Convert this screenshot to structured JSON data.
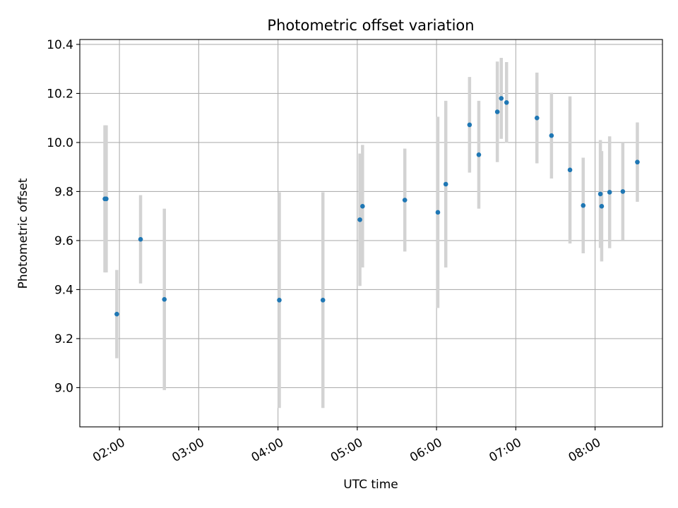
{
  "chart_data": {
    "type": "scatter",
    "title": "Photometric offset variation",
    "xlabel": "UTC time",
    "ylabel": "Photometric offset",
    "grid": true,
    "xlim": [
      "01:30",
      "08:51"
    ],
    "ylim": [
      8.84,
      10.42
    ],
    "xticks": [
      "02:00",
      "03:00",
      "04:00",
      "05:00",
      "06:00",
      "07:00",
      "08:00"
    ],
    "yticks": [
      9.0,
      9.2,
      9.4,
      9.6,
      9.8,
      10.0,
      10.2,
      10.4
    ],
    "series_color": "#1f77b4",
    "errorbar_color": "#d3d3d3",
    "points": [
      {
        "x": "01:49",
        "y": 9.77,
        "yerr": 0.3
      },
      {
        "x": "01:50",
        "y": 9.77,
        "yerr": 0.3
      },
      {
        "x": "01:58",
        "y": 9.3,
        "yerr": 0.18
      },
      {
        "x": "02:16",
        "y": 9.605,
        "yerr": 0.18
      },
      {
        "x": "02:34",
        "y": 9.36,
        "yerr": 0.37
      },
      {
        "x": "04:01",
        "y": 9.357,
        "yerr": 0.44
      },
      {
        "x": "04:34",
        "y": 9.357,
        "yerr": 0.44
      },
      {
        "x": "05:02",
        "y": 9.685,
        "yerr": 0.27
      },
      {
        "x": "05:04",
        "y": 9.74,
        "yerr": 0.25
      },
      {
        "x": "05:36",
        "y": 9.765,
        "yerr": 0.21
      },
      {
        "x": "06:01",
        "y": 9.715,
        "yerr": 0.39
      },
      {
        "x": "06:07",
        "y": 9.83,
        "yerr": 0.34
      },
      {
        "x": "06:25",
        "y": 10.072,
        "yerr": 0.195
      },
      {
        "x": "06:32",
        "y": 9.95,
        "yerr": 0.22
      },
      {
        "x": "06:46",
        "y": 10.125,
        "yerr": 0.205
      },
      {
        "x": "06:49",
        "y": 10.18,
        "yerr": 0.165
      },
      {
        "x": "06:53",
        "y": 10.163,
        "yerr": 0.165
      },
      {
        "x": "07:16",
        "y": 10.1,
        "yerr": 0.185
      },
      {
        "x": "07:27",
        "y": 10.028,
        "yerr": 0.175
      },
      {
        "x": "07:41",
        "y": 9.888,
        "yerr": 0.3
      },
      {
        "x": "07:51",
        "y": 9.743,
        "yerr": 0.195
      },
      {
        "x": "08:04",
        "y": 9.79,
        "yerr": 0.22
      },
      {
        "x": "08:05",
        "y": 9.74,
        "yerr": 0.225
      },
      {
        "x": "08:11",
        "y": 9.797,
        "yerr": 0.228
      },
      {
        "x": "08:21",
        "y": 9.8,
        "yerr": 0.2
      },
      {
        "x": "08:32",
        "y": 9.92,
        "yerr": 0.162
      }
    ]
  }
}
